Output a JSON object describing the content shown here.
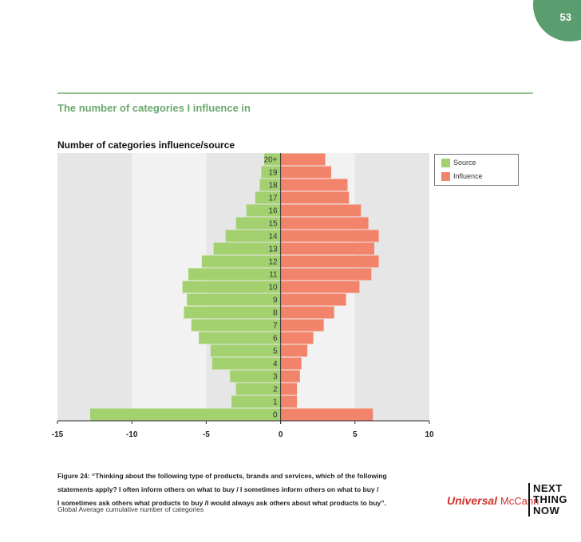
{
  "page": {
    "number": "53"
  },
  "section_title": "The number of categories I influence in",
  "chart_data": {
    "type": "bar",
    "orientation": "horizontal",
    "title": "Number of categories influence/source",
    "categories": [
      "0",
      "1",
      "2",
      "3",
      "4",
      "5",
      "6",
      "7",
      "8",
      "9",
      "10",
      "11",
      "12",
      "13",
      "14",
      "15",
      "16",
      "17",
      "18",
      "19",
      "20+"
    ],
    "series": [
      {
        "name": "Source",
        "color": "#a3d16f",
        "values": [
          -12.8,
          -3.3,
          -3.0,
          -3.4,
          -4.6,
          -4.7,
          -5.5,
          -6.0,
          -6.5,
          -6.3,
          -6.6,
          -6.2,
          -5.3,
          -4.5,
          -3.7,
          -3.0,
          -2.3,
          -1.7,
          -1.4,
          -1.3,
          -1.1
        ]
      },
      {
        "name": "Influence",
        "color": "#f2846b",
        "values": [
          6.2,
          1.1,
          1.1,
          1.3,
          1.4,
          1.8,
          2.2,
          2.9,
          3.6,
          4.4,
          5.3,
          6.1,
          6.6,
          6.3,
          6.6,
          5.9,
          5.4,
          4.6,
          4.5,
          3.4,
          3.0
        ]
      }
    ],
    "xlim": [
      -15,
      10
    ],
    "xticks": [
      -15,
      -10,
      -5,
      0,
      5,
      10
    ],
    "background_bands": [
      "#e6e6e6",
      "#f2f2f2"
    ],
    "legend": "top-right"
  },
  "caption": {
    "lines": [
      "Figure 24: “Thinking about the following type of products, brands and services, which of the following",
      "statements apply? I often inform others on what to buy / I sometimes inform others on what to buy /",
      "I sometimes ask others what products to buy /I would always ask others about what products to buy”."
    ],
    "note": "Global Average cumulative number of categories"
  },
  "logos": {
    "universal": "Universal",
    "mccann": "McCann",
    "ntn": [
      "NEXT",
      "THING",
      "NOW"
    ]
  },
  "colors": {
    "accent_green": "#6aa86d",
    "badge": "#5a9e6f"
  }
}
